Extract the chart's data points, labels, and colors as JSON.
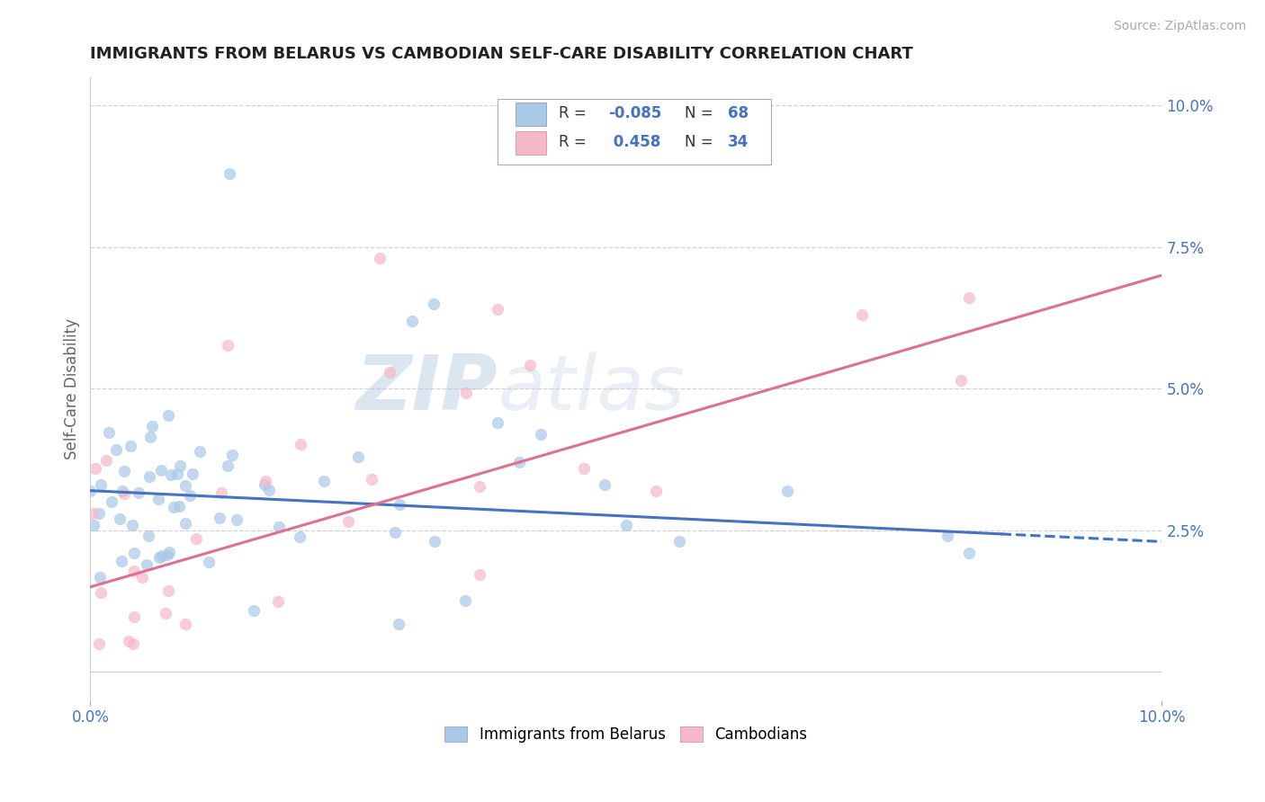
{
  "title": "IMMIGRANTS FROM BELARUS VS CAMBODIAN SELF-CARE DISABILITY CORRELATION CHART",
  "source_text": "Source: ZipAtlas.com",
  "ylabel": "Self-Care Disability",
  "legend_label_blue": "Immigrants from Belarus",
  "legend_label_pink": "Cambodians",
  "r_blue": -0.085,
  "n_blue": 68,
  "r_pink": 0.458,
  "n_pink": 34,
  "color_blue": "#a8c8e8",
  "color_pink": "#f5b8c8",
  "color_blue_line": "#4472c4",
  "color_pink_line": "#e07090",
  "watermark_color": "#c8d8ec",
  "background_color": "#ffffff",
  "xlim": [
    0.0,
    0.1
  ],
  "ylim": [
    -0.005,
    0.105
  ],
  "yticks": [
    0.025,
    0.05,
    0.075,
    0.1
  ],
  "ytick_labels": [
    "2.5%",
    "5.0%",
    "7.5%",
    "10.0%"
  ],
  "grid_color": "#d0d0d8",
  "title_color": "#222222",
  "axis_color": "#888888",
  "source_color": "#aaaaaa",
  "tick_color": "#4472c4",
  "legend_text_color": "#4472c4"
}
